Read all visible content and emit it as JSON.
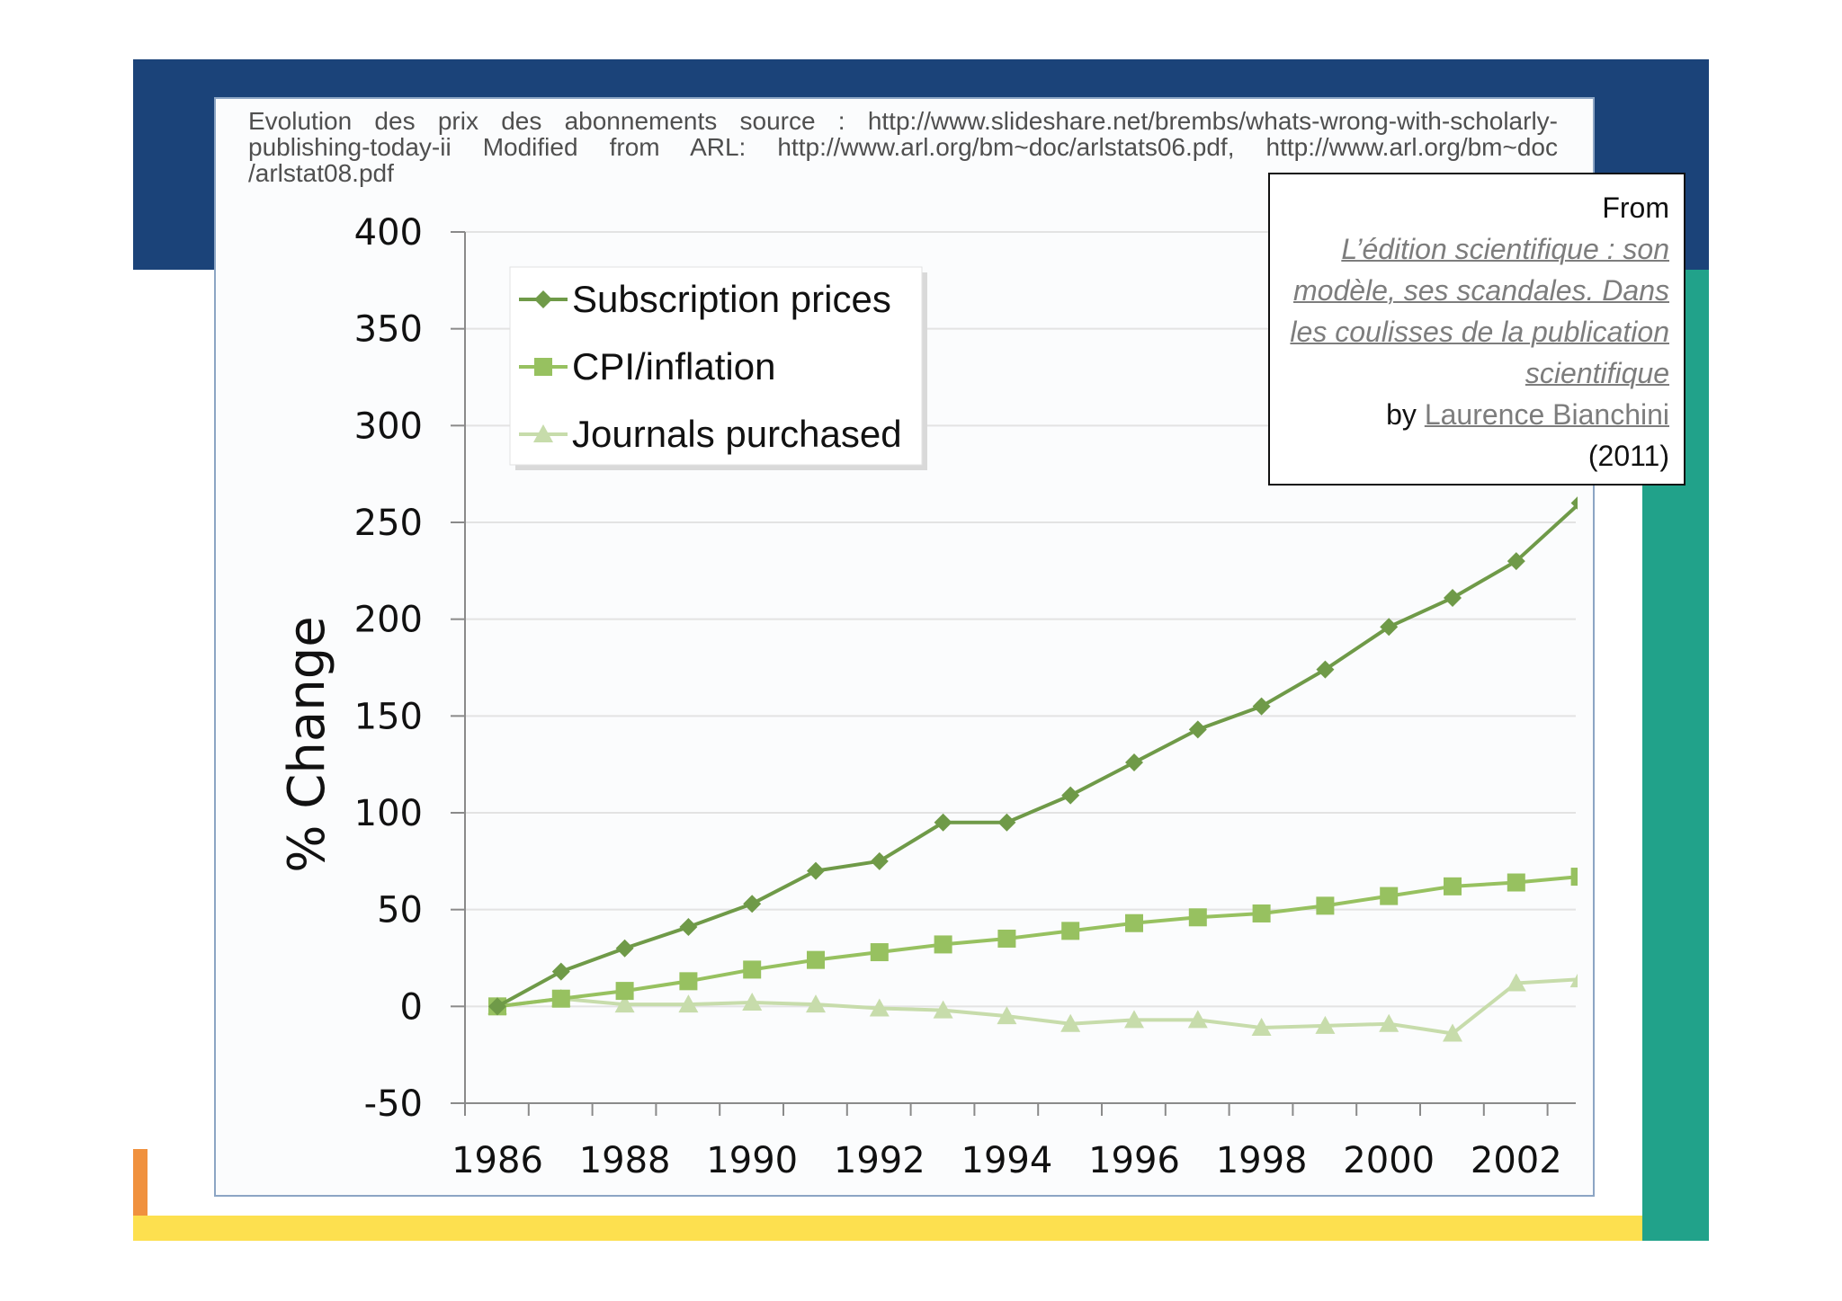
{
  "source_note": "Evolution des prix des abonnements source : http://www.slideshare.net/brembs/whats-wrong-with-scholarly-publishing-today-ii Modified from ARL: http://www.arl.org/bm~doc/arlstats06.pdf, http://www.arl.org/bm~doc /arlstat08.pdf",
  "credit": {
    "from": "From",
    "title": "L’édition scientifique : son modèle, ses scandales. Dans les coulisses de la publication scientifique",
    "by": "by",
    "author": "Laurence Bianchini",
    "year": "(2011)"
  },
  "colors": {
    "slide_blue": "#1b4379",
    "slide_teal": "#21a28a",
    "slide_yellow": "#fde04f",
    "slide_orange": "#f0913e",
    "subscription": "#6f9a48",
    "cpi": "#97c160",
    "journals": "#c7dcab"
  },
  "chart_data": {
    "type": "line",
    "title": "",
    "xlabel": "",
    "ylabel": "% Change",
    "ylim": [
      -50,
      400
    ],
    "yticks": [
      -50,
      0,
      50,
      100,
      150,
      200,
      250,
      300,
      350,
      400
    ],
    "xticks": [
      1986,
      1988,
      1990,
      1992,
      1994,
      1996,
      1998,
      2000,
      2002
    ],
    "xlim": [
      1986,
      2003
    ],
    "grid": true,
    "legend_position": "top-left",
    "x": [
      1986,
      1987,
      1988,
      1989,
      1990,
      1991,
      1992,
      1993,
      1994,
      1995,
      1996,
      1997,
      1998,
      1999,
      2000,
      2001,
      2002,
      2003
    ],
    "series": [
      {
        "name": "Subscription prices",
        "marker": "diamond",
        "color": "#6f9a48",
        "values": [
          0,
          18,
          30,
          41,
          53,
          70,
          75,
          95,
          95,
          109,
          126,
          143,
          155,
          174,
          196,
          211,
          230,
          260
        ]
      },
      {
        "name": "CPI/inflation",
        "marker": "square",
        "color": "#97c160",
        "values": [
          0,
          4,
          8,
          13,
          19,
          24,
          28,
          32,
          35,
          39,
          43,
          46,
          48,
          52,
          57,
          62,
          64,
          67
        ]
      },
      {
        "name": "Journals purchased",
        "marker": "triangle",
        "color": "#c7dcab",
        "values": [
          0,
          4,
          1,
          1,
          2,
          1,
          -1,
          -2,
          -5,
          -9,
          -7,
          -7,
          -11,
          -10,
          -9,
          -14,
          12,
          14
        ]
      }
    ]
  }
}
